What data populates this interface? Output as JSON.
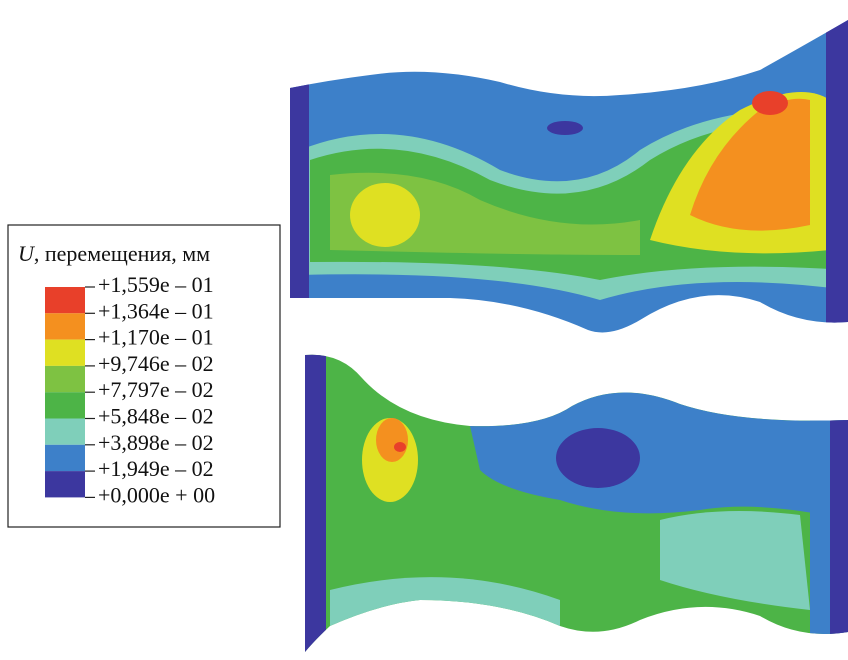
{
  "legend": {
    "title_symbol": "U",
    "title_text": ", перемещения, мм",
    "labels": [
      "+1,559e – 01",
      "+1,364e – 01",
      "+1,170e – 01",
      "+9,746e – 02",
      "+7,797e – 02",
      "+5,848e – 02",
      "+3,898e – 02",
      "+1,949e – 02",
      "+0,000e + 00"
    ],
    "colors": [
      "#e8402a",
      "#f4901f",
      "#dfe022",
      "#7ec242",
      "#4db447",
      "#7fcfba",
      "#3d80c9",
      "#3c379f"
    ]
  }
}
